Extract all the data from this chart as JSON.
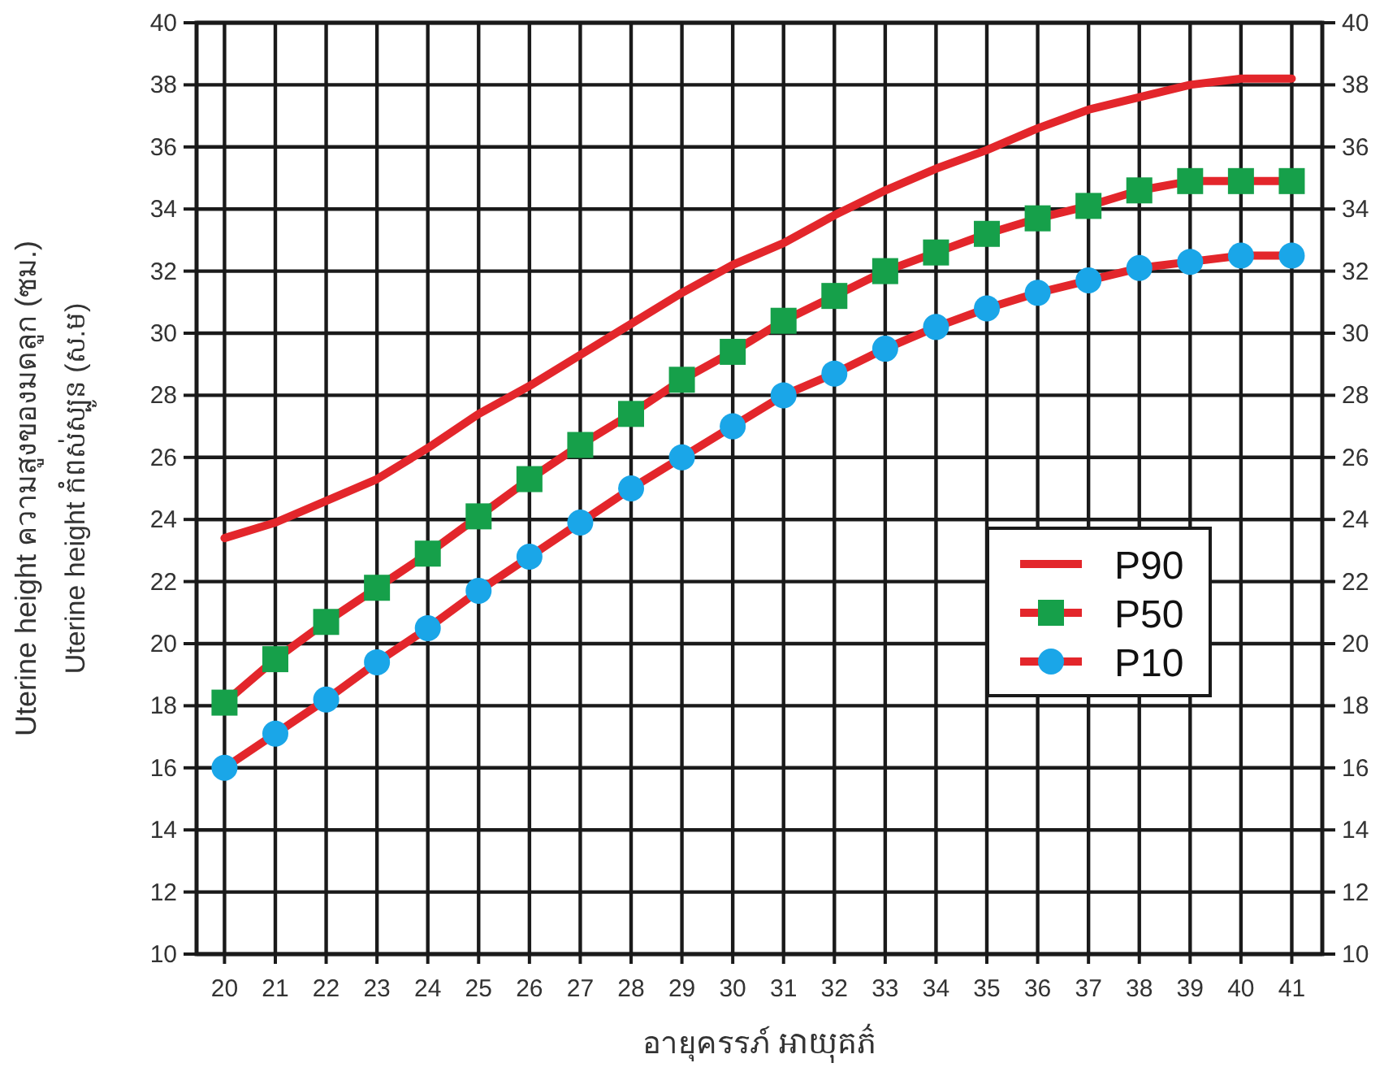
{
  "chart_data": {
    "type": "line",
    "ylabel": "Uterine height ความสูงของมดลูก (ซม.)\nUterine height កំពស់ស្បូន (ស.ម)",
    "xlabel": "อายุครรภ์ អាយុគភ៌",
    "x": [
      20,
      21,
      22,
      23,
      24,
      25,
      26,
      27,
      28,
      29,
      30,
      31,
      32,
      33,
      34,
      35,
      36,
      37,
      38,
      39,
      40,
      41
    ],
    "xlim": [
      19.45,
      41.6
    ],
    "xticks": [
      20,
      21,
      22,
      23,
      24,
      25,
      26,
      27,
      28,
      29,
      30,
      31,
      32,
      33,
      34,
      35,
      36,
      37,
      38,
      39,
      40,
      41
    ],
    "ylim": [
      10,
      40
    ],
    "yticks": [
      10,
      12,
      14,
      16,
      18,
      20,
      22,
      24,
      26,
      28,
      30,
      32,
      34,
      36,
      38,
      40
    ],
    "y2lim": [
      10,
      40
    ],
    "y2ticks": [
      10,
      12,
      14,
      16,
      18,
      20,
      22,
      24,
      26,
      28,
      30,
      32,
      34,
      36,
      38,
      40
    ],
    "grid": true,
    "legend": "right",
    "line_style": "solid",
    "series": [
      {
        "name": "P90",
        "color": "#e3262b",
        "marker": "none",
        "values": [
          23.4,
          23.9,
          24.6,
          25.3,
          26.3,
          27.4,
          28.3,
          29.3,
          30.3,
          31.3,
          32.2,
          32.9,
          33.8,
          34.6,
          35.3,
          35.9,
          36.6,
          37.2,
          37.6,
          38.0,
          38.2,
          38.2
        ]
      },
      {
        "name": "P50",
        "color": "#e3262b",
        "marker": "square",
        "colors": [
          "#16a04a",
          "#16a04a",
          "#16a04a",
          "#16a04a",
          "#16a04a",
          "#16a04a",
          "#16a04a",
          "#16a04a",
          "#16a04a",
          "#16a04a",
          "#16a04a",
          "#16a04a",
          "#16a04a",
          "#16a04a",
          "#16a04a",
          "#16a04a",
          "#16a04a",
          "#16a04a",
          "#16a04a",
          "#16a04a",
          "#16a04a",
          "#16a04a"
        ],
        "values": [
          18.1,
          19.5,
          20.7,
          21.8,
          22.9,
          24.1,
          25.3,
          26.4,
          27.4,
          28.5,
          29.4,
          30.4,
          31.2,
          32.0,
          32.6,
          33.2,
          33.7,
          34.1,
          34.6,
          34.9,
          34.9,
          34.9
        ]
      },
      {
        "name": "P10",
        "color": "#e3262b",
        "marker": "circle",
        "colors": [
          "#1aa6e8",
          "#1aa6e8",
          "#1aa6e8",
          "#1aa6e8",
          "#1aa6e8",
          "#1aa6e8",
          "#1aa6e8",
          "#1aa6e8",
          "#1aa6e8",
          "#1aa6e8",
          "#1aa6e8",
          "#1aa6e8",
          "#1aa6e8",
          "#1aa6e8",
          "#1aa6e8",
          "#1aa6e8",
          "#1aa6e8",
          "#1aa6e8",
          "#1aa6e8",
          "#1aa6e8",
          "#1aa6e8",
          "#1aa6e8"
        ],
        "values": [
          16.0,
          17.1,
          18.2,
          19.4,
          20.5,
          21.7,
          22.8,
          23.9,
          25.0,
          26.0,
          27.0,
          28.0,
          28.7,
          29.5,
          30.2,
          30.8,
          31.3,
          31.7,
          32.1,
          32.3,
          32.5,
          32.5
        ]
      }
    ]
  }
}
